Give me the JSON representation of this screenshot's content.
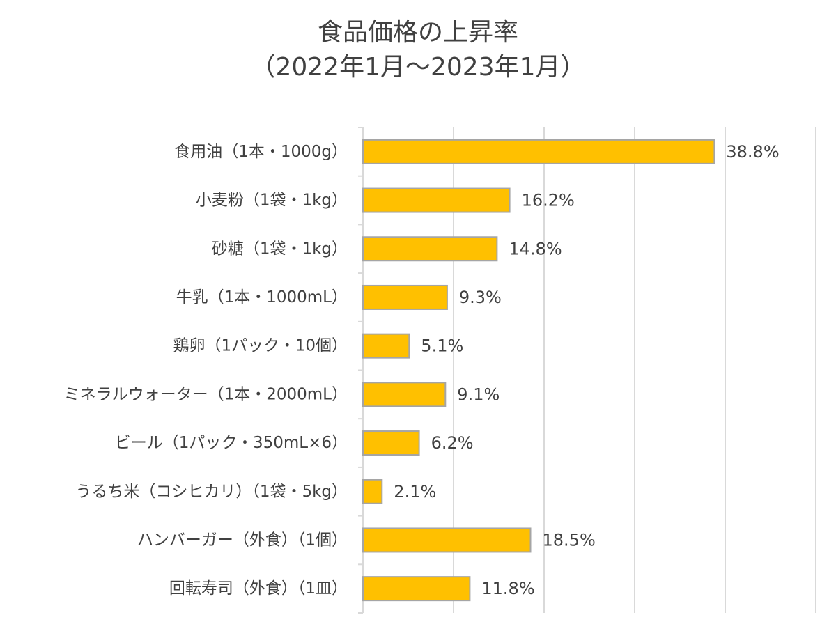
{
  "chart_data": {
    "type": "bar",
    "orientation": "horizontal",
    "title": "食品価格の上昇率",
    "subtitle": "（2022年1月～2023年1月）",
    "categories": [
      "食用油（1本・1000g）",
      "小麦粉（1袋・1kg）",
      "砂糖（1袋・1kg）",
      "牛乳（1本・1000mL）",
      "鶏卵（1パック・10個）",
      "ミネラルウォーター（1本・2000mL）",
      "ビール（1パック・350mL×6）",
      "うるち米（コシヒカリ）（1袋・5kg）",
      "ハンバーガー（外食）（1個）",
      "回転寿司（外食）（1皿）"
    ],
    "values": [
      38.8,
      16.2,
      14.8,
      9.3,
      5.1,
      9.1,
      6.2,
      2.1,
      18.5,
      11.8
    ],
    "value_labels": [
      "38.8%",
      "16.2%",
      "14.8%",
      "9.3%",
      "5.1%",
      "9.1%",
      "6.2%",
      "2.1%",
      "18.5%",
      "11.8%"
    ],
    "xlim": [
      0,
      50
    ],
    "grid": true,
    "bar_color": "#FFC000",
    "bar_border_color": "#A5A5A5",
    "grid_color": "#D9D9D9"
  }
}
